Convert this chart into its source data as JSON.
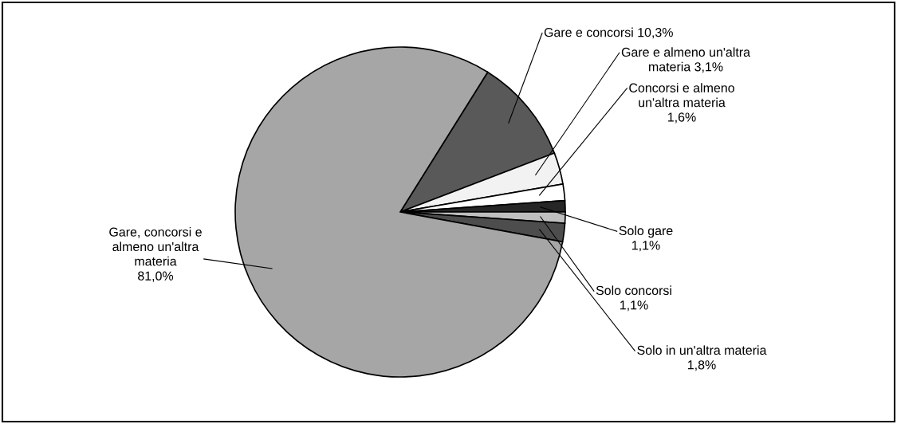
{
  "chart_data": {
    "type": "pie",
    "categories": [
      "Gare e concorsi",
      "Gare e almeno un'altra materia",
      "Concorsi e almeno un'altra materia",
      "Solo gare",
      "Solo concorsi",
      "Solo in un'altra materia",
      "Gare, concorsi e almeno un'altra materia"
    ],
    "values": [
      10.3,
      3.1,
      1.6,
      1.1,
      1.1,
      1.8,
      81.0
    ],
    "value_labels": [
      "10,3%",
      "3,1%",
      "1,6%",
      "1,1%",
      "1,1%",
      "1,8%",
      "81,0%"
    ],
    "colors": [
      "#595959",
      "#f2f2f2",
      "#ffffff",
      "#262626",
      "#bfbfbf",
      "#4d4d4d",
      "#a6a6a6"
    ],
    "legend": false
  }
}
